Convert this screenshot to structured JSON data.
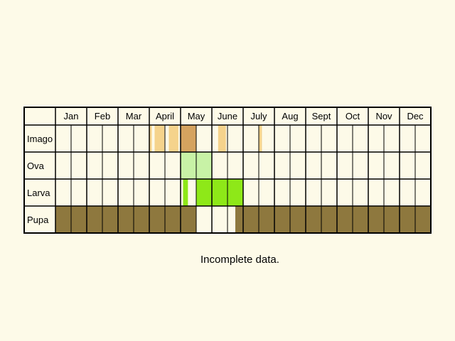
{
  "chart_data": {
    "type": "table",
    "title": "",
    "months": [
      "Jan",
      "Feb",
      "Mar",
      "April",
      "May",
      "June",
      "July",
      "Aug",
      "Sept",
      "Oct",
      "Nov",
      "Dec"
    ],
    "subdivisions_per_month": 2,
    "rows": [
      {
        "label": "Imago",
        "segments": [
          {
            "start": 6.0,
            "end": 6.16,
            "color": "#f5d38c"
          },
          {
            "start": 6.34,
            "end": 6.97,
            "color": "#f5d38c"
          },
          {
            "start": 7.25,
            "end": 7.86,
            "color": "#f5d38c"
          },
          {
            "start": 8.0,
            "end": 8.5,
            "color": "#d5a35f"
          },
          {
            "start": 8.5,
            "end": 9.0,
            "color": "#d5a35f"
          },
          {
            "start": 10.4,
            "end": 10.9,
            "color": "#f5d38c"
          },
          {
            "start": 13.0,
            "end": 13.2,
            "color": "#f5d38c"
          }
        ]
      },
      {
        "label": "Ova",
        "segments": [
          {
            "start": 8.0,
            "end": 10.0,
            "color": "#c8f2a6"
          }
        ]
      },
      {
        "label": "Larva",
        "segments": [
          {
            "start": 8.16,
            "end": 8.47,
            "color": "#8ee818"
          },
          {
            "start": 9.0,
            "end": 12.0,
            "color": "#8ee818"
          }
        ]
      },
      {
        "label": "Pupa",
        "segments": [
          {
            "start": 0.0,
            "end": 9.0,
            "color": "#8e783e"
          },
          {
            "start": 11.5,
            "end": 24.0,
            "color": "#8e783e"
          }
        ]
      }
    ],
    "colors": {
      "imago_light": "#f5d38c",
      "imago_dark": "#d5a35f",
      "ova": "#c8f2a6",
      "larva": "#8ee818",
      "pupa": "#8e783e",
      "background": "#fdfae8"
    }
  },
  "note": "Incomplete data."
}
